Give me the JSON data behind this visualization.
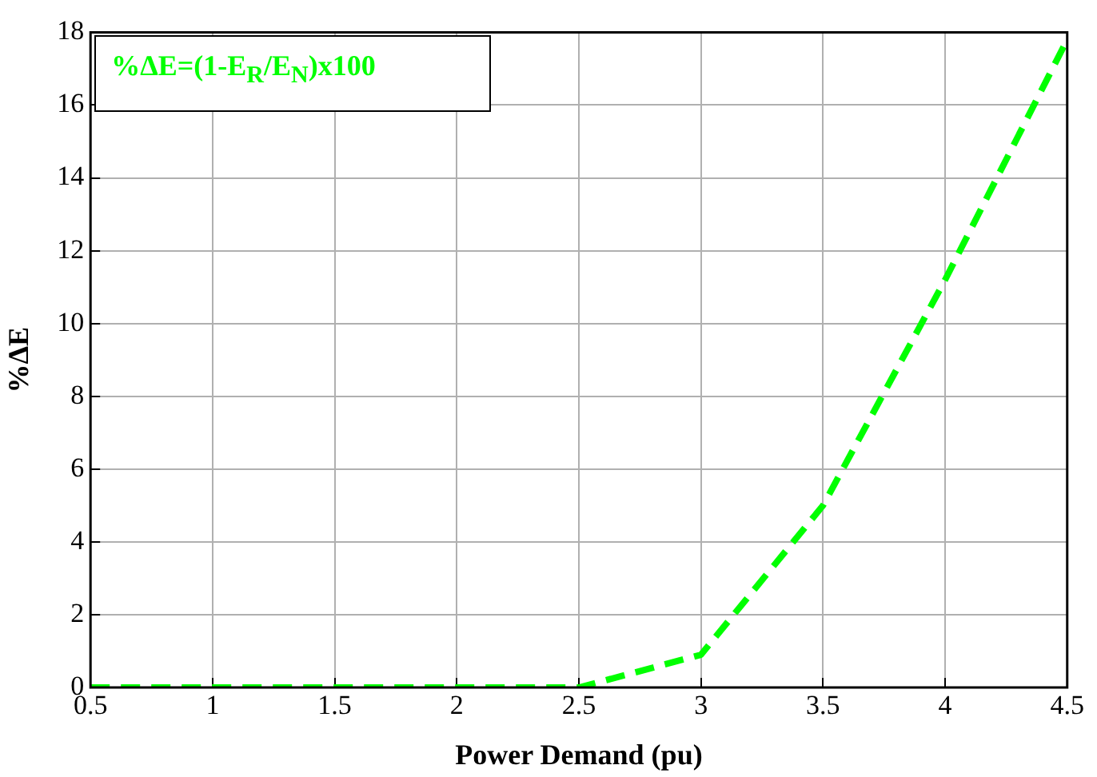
{
  "chart_data": {
    "type": "line",
    "xlabel": "Power Demand (pu)",
    "ylabel": "%ΔE",
    "x": [
      0.5,
      1,
      1.5,
      2,
      2.5,
      3,
      3.5,
      4,
      4.5
    ],
    "series": [
      {
        "color": "#00ff00",
        "values": [
          0,
          0,
          0,
          0,
          0,
          0.9,
          5.0,
          11.2,
          17.8
        ]
      }
    ],
    "xlim": [
      0.5,
      4.5
    ],
    "xticks": [
      0.5,
      1,
      1.5,
      2,
      2.5,
      3,
      3.5,
      4,
      4.5
    ],
    "ylim": [
      0,
      18
    ],
    "yticks": [
      0,
      2,
      4,
      6,
      8,
      10,
      12,
      14,
      16,
      18
    ],
    "grid": true,
    "line_style": "dashed",
    "annotations": [
      "%ΔE=(1-E$_{R}$/E$_{N}$)x100"
    ]
  }
}
